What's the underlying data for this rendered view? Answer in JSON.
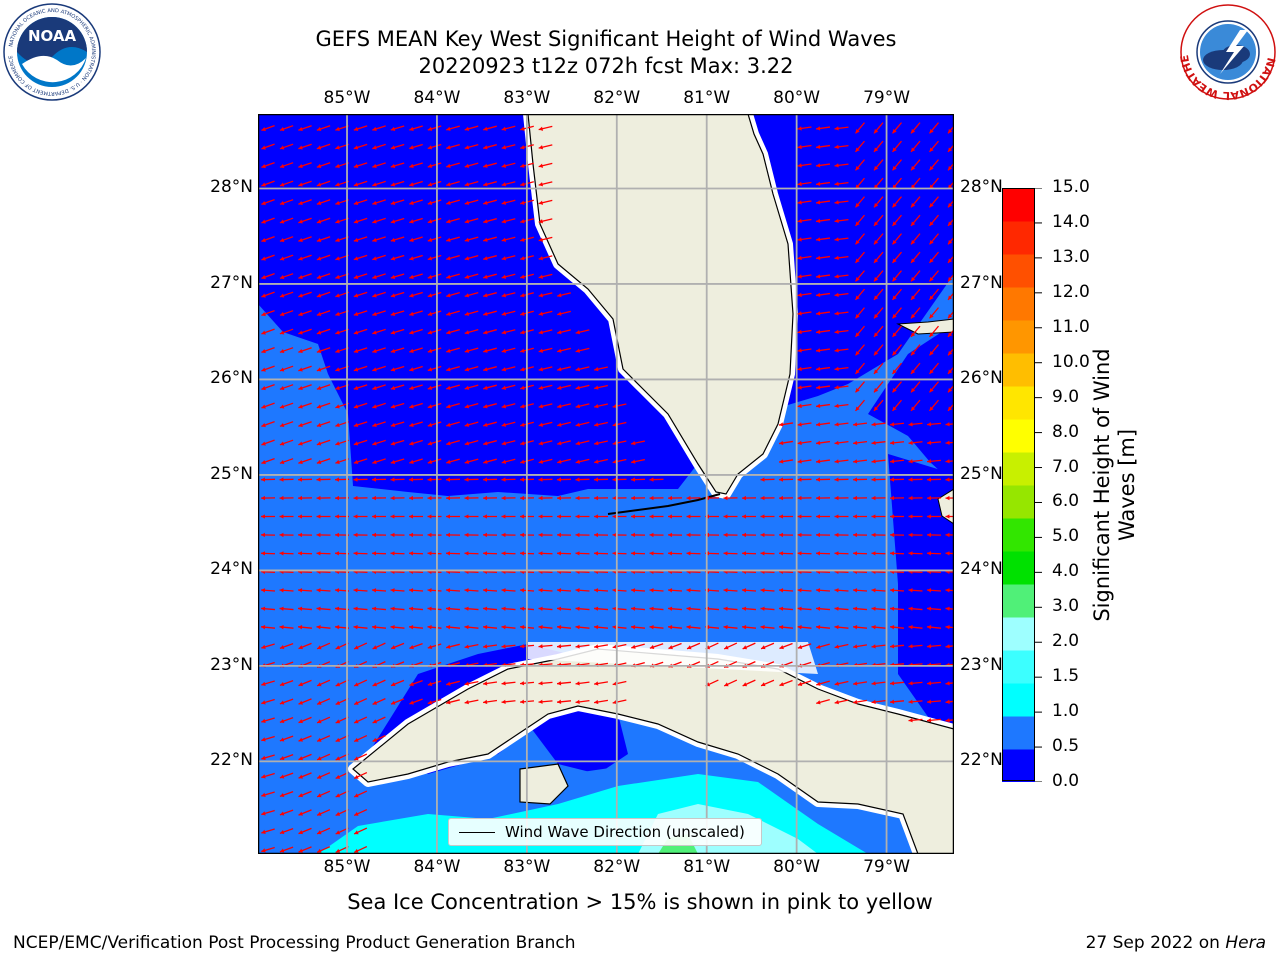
{
  "title_line1": "GEFS MEAN Key West Significant Height of Wind Waves",
  "title_line2": "20220923 t12z 072h fcst   Max: 3.22",
  "lon_labels": [
    "85°W",
    "84°W",
    "83°W",
    "82°W",
    "81°W",
    "80°W",
    "79°W"
  ],
  "lat_labels": [
    "28°N",
    "27°N",
    "26°N",
    "25°N",
    "24°N",
    "23°N",
    "22°N"
  ],
  "map_extent": {
    "lon_min": -85.99,
    "lon_max": -78.25,
    "lat_min": 21.03,
    "lat_max": 28.78
  },
  "colorbar": {
    "label": "Significant Height of Wind Waves [m]",
    "label_line1": "Significant Height of Wind",
    "label_line2": "Waves [m]",
    "ticks": [
      "15.0",
      "14.0",
      "13.0",
      "12.0",
      "11.0",
      "10.0",
      "9.0",
      "8.0",
      "7.0",
      "6.0",
      "5.0",
      "4.0",
      "3.0",
      "2.0",
      "1.5",
      "1.0",
      "0.5",
      "0.0"
    ],
    "colors": [
      "#0000ff",
      "#1e78ff",
      "#00ffff",
      "#3cffff",
      "#9effff",
      "#50f078",
      "#00e100",
      "#32e600",
      "#96e600",
      "#c8f000",
      "#ffff00",
      "#ffe600",
      "#ffbe00",
      "#ff9600",
      "#ff7800",
      "#ff5000",
      "#ff2800",
      "#ff0000"
    ]
  },
  "legend_label": "Wind Wave Direction (unscaled)",
  "sea_ice_note": "Sea Ice Concentration > 15% is shown in pink to yellow",
  "footer_left": "NCEP/EMC/Verification Post Processing Product Generation Branch",
  "footer_date": "27 Sep 2022 on",
  "footer_host": "Hera",
  "logos": {
    "noaa": {
      "text": "NOAA",
      "ring_text": "NATIONAL OCEANIC AND ATMOSPHERIC ADMINISTRATION · U.S. DEPARTMENT OF COMMERCE"
    },
    "nws": {
      "ring_text": "NATIONAL WEATHER SERVICE"
    }
  },
  "colors": {
    "land": "#eeeede",
    "grid": "#b0b0b0",
    "arrow": "#ff0000",
    "ocean_low": "#0000ff",
    "ocean_mid": "#1e78ff"
  }
}
